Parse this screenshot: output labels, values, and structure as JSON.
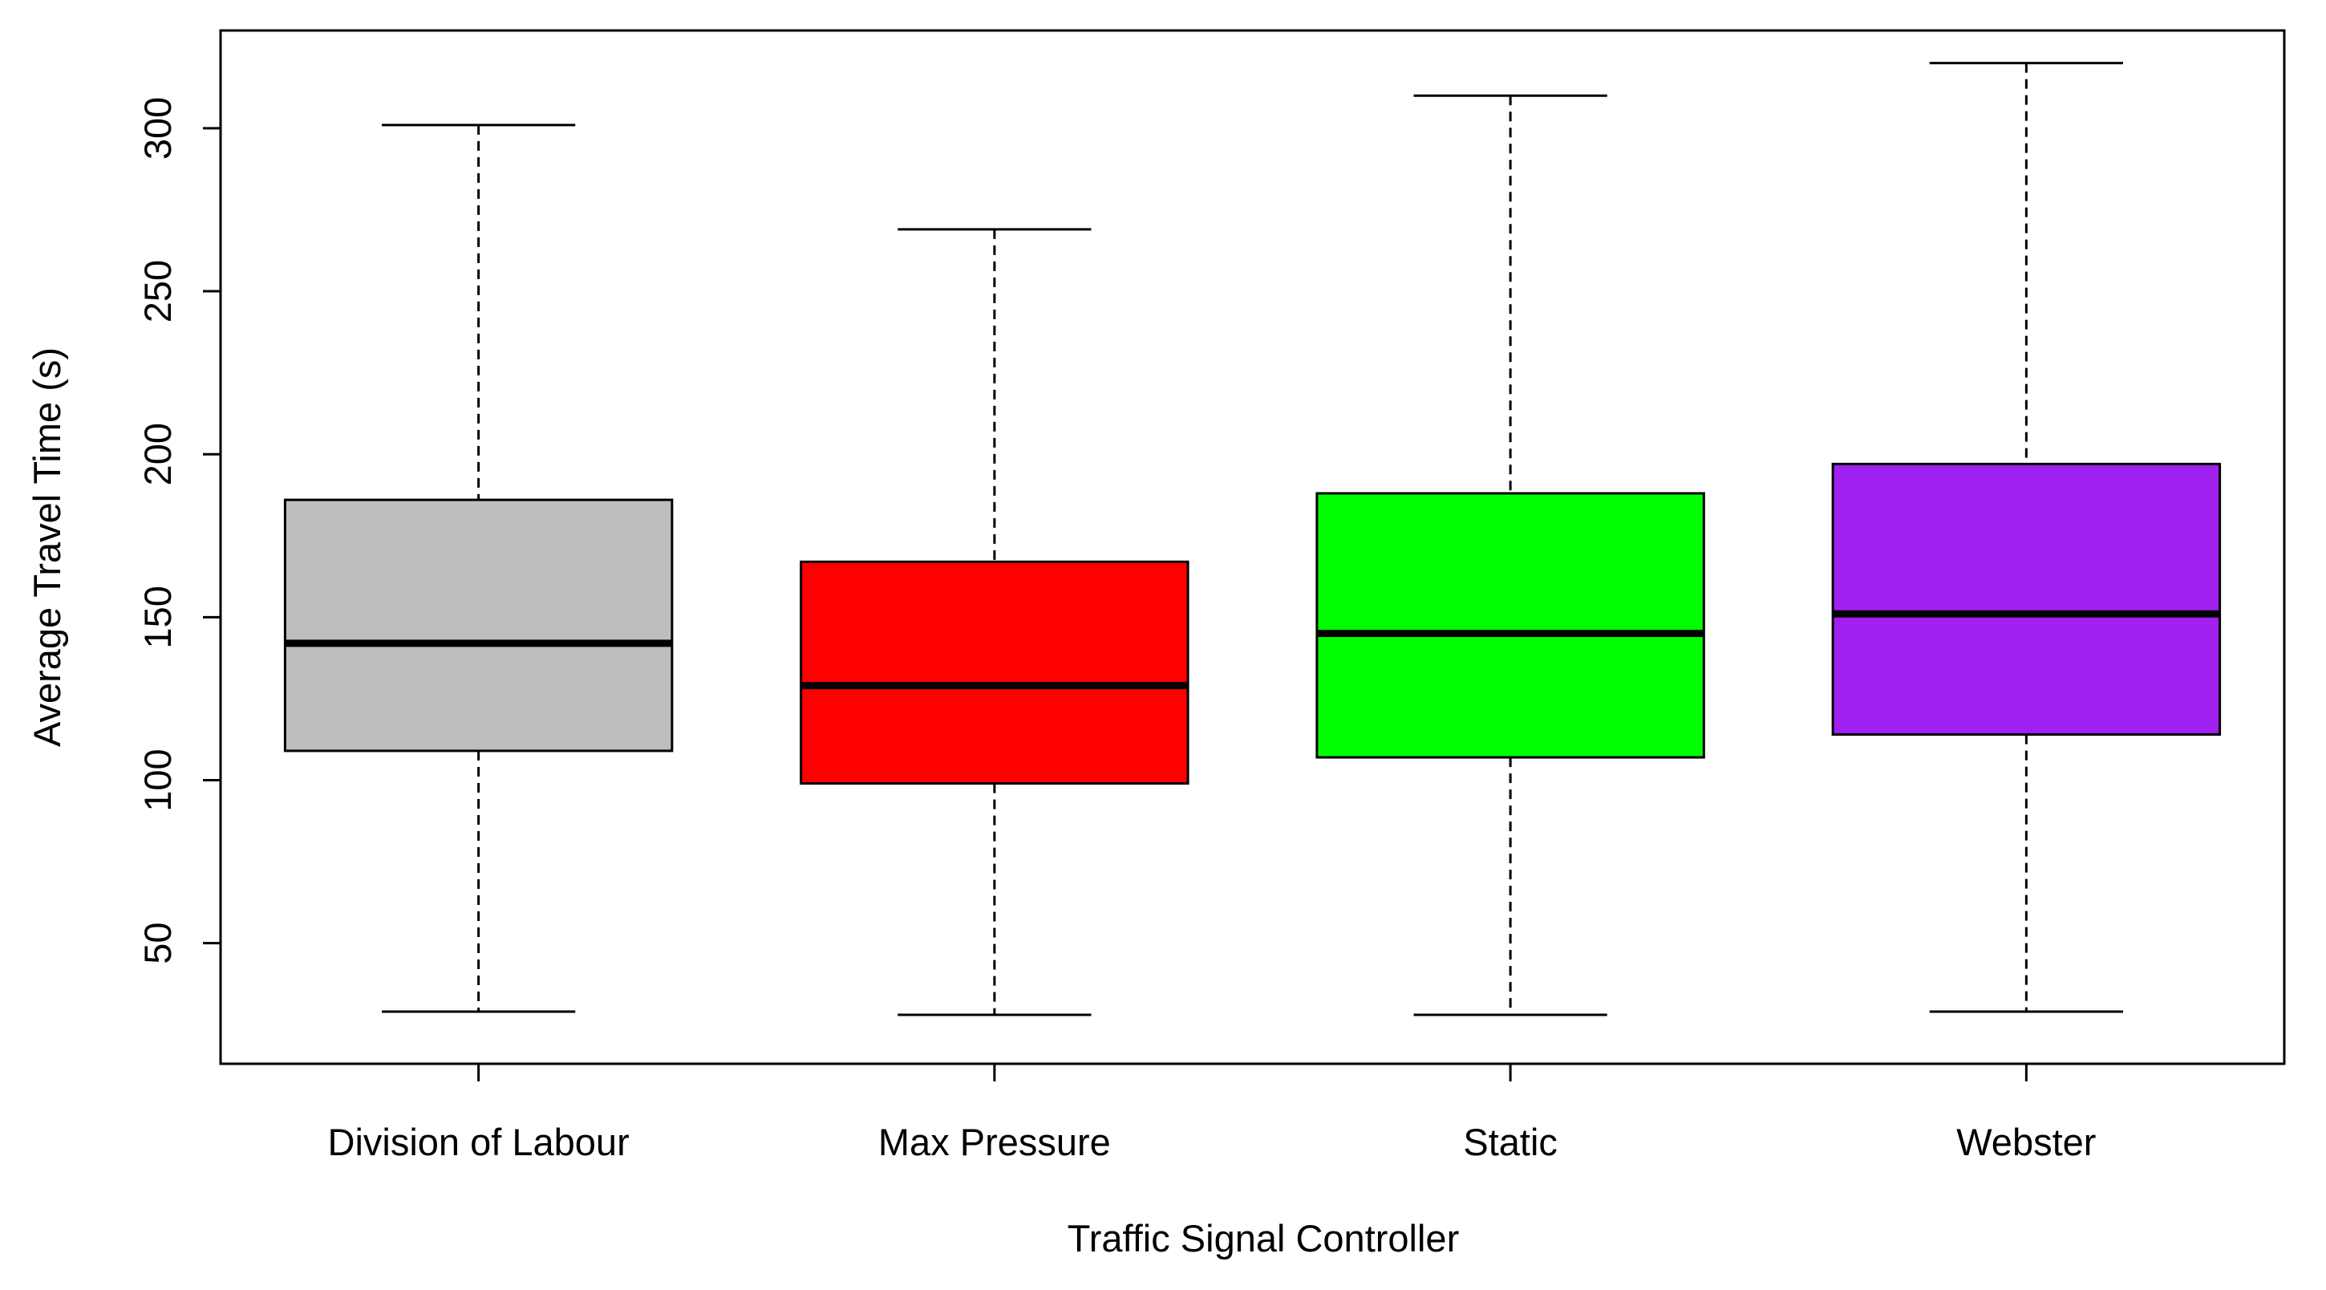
{
  "chart_data": {
    "type": "boxplot",
    "xlabel": "Traffic Signal Controller",
    "ylabel": "Average Travel Time (s)",
    "ylim": [
      13,
      330
    ],
    "yticks": [
      50,
      100,
      150,
      200,
      250,
      300
    ],
    "grid": false,
    "legend": "none",
    "whisker_style": "dashed",
    "categories": [
      "Division of Labour",
      "Max Pressure",
      "Static",
      "Webster"
    ],
    "boxes": [
      {
        "category": "Division of Labour",
        "whisker_low": 29,
        "q1": 109,
        "median": 142,
        "q3": 186,
        "whisker_high": 301,
        "color": "#BEBEBE"
      },
      {
        "category": "Max Pressure",
        "whisker_low": 28,
        "q1": 99,
        "median": 129,
        "q3": 167,
        "whisker_high": 269,
        "color": "#FF0000"
      },
      {
        "category": "Static",
        "whisker_low": 28,
        "q1": 107,
        "median": 145,
        "q3": 188,
        "whisker_high": 310,
        "color": "#00FF00"
      },
      {
        "category": "Webster",
        "whisker_low": 29,
        "q1": 114,
        "median": 151,
        "q3": 197,
        "whisker_high": 320,
        "color": "#A020F0"
      }
    ]
  }
}
